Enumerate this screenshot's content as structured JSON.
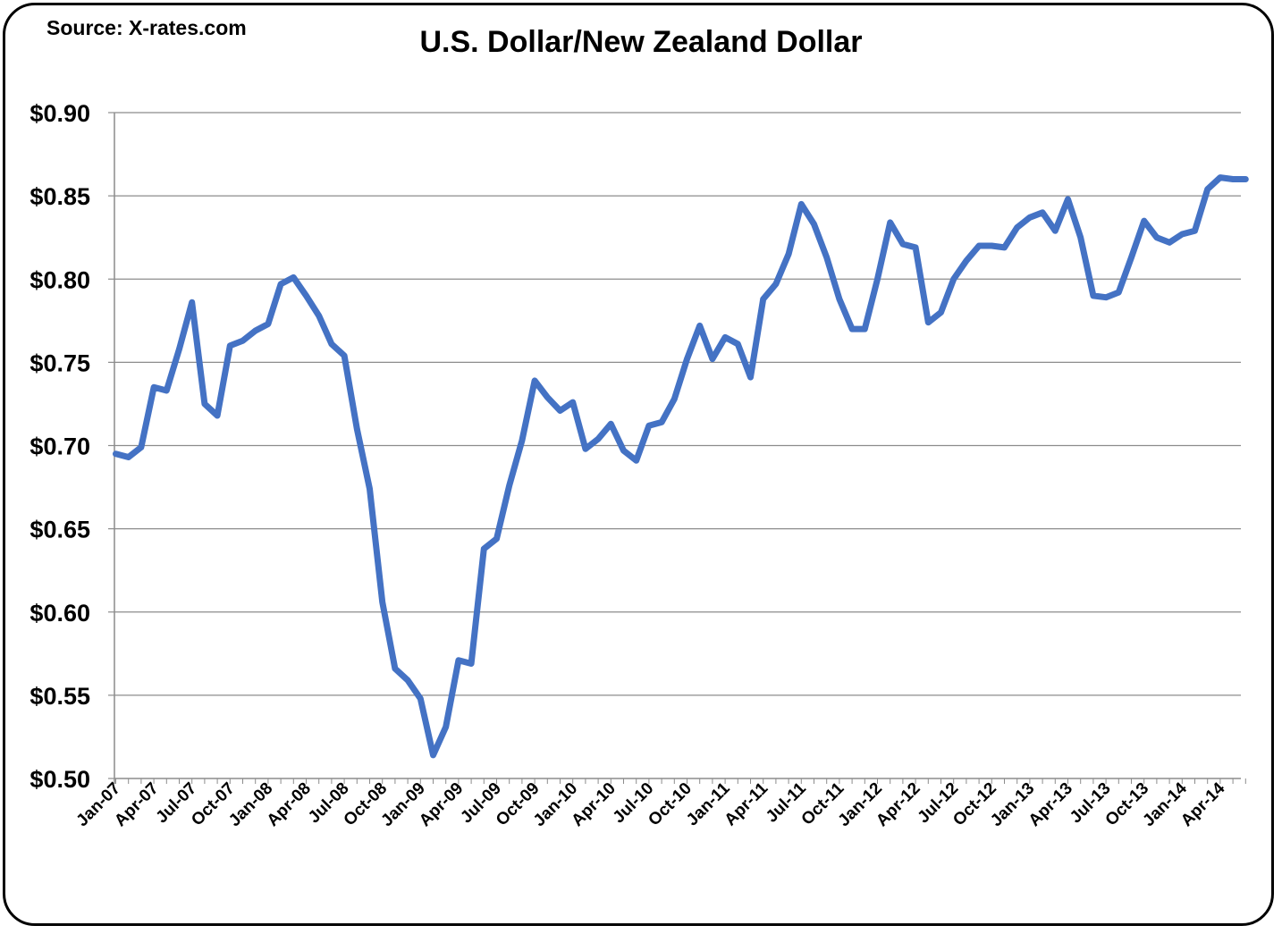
{
  "source": "Source: X-rates.com",
  "chart_data": {
    "type": "line",
    "title": "U.S. Dollar/New Zealand Dollar",
    "xlabel": "",
    "ylabel": "",
    "ylim": [
      0.5,
      0.9
    ],
    "yticks": [
      0.5,
      0.55,
      0.6,
      0.65,
      0.7,
      0.75,
      0.8,
      0.85,
      0.9
    ],
    "ytick_labels": [
      "$0.50",
      "$0.55",
      "$0.60",
      "$0.65",
      "$0.70",
      "$0.75",
      "$0.80",
      "$0.85",
      "$0.90"
    ],
    "xtick_labels": [
      "Jan-07",
      "Apr-07",
      "Jul-07",
      "Oct-07",
      "Jan-08",
      "Apr-08",
      "Jul-08",
      "Oct-08",
      "Jan-09",
      "Apr-09",
      "Jul-09",
      "Oct-09",
      "Jan-10",
      "Apr-10",
      "Jul-10",
      "Oct-10",
      "Jan-11",
      "Apr-11",
      "Jul-11",
      "Oct-11",
      "Jan-12",
      "Apr-12",
      "Jul-12",
      "Oct-12",
      "Jan-13",
      "Apr-13",
      "Jul-13",
      "Oct-13",
      "Jan-14",
      "Apr-14"
    ],
    "grid": true,
    "legend": "none",
    "line_color": "#4472C4",
    "categories": [
      "Jan-07",
      "Feb-07",
      "Mar-07",
      "Apr-07",
      "May-07",
      "Jun-07",
      "Jul-07",
      "Aug-07",
      "Sep-07",
      "Oct-07",
      "Nov-07",
      "Dec-07",
      "Jan-08",
      "Feb-08",
      "Mar-08",
      "Apr-08",
      "May-08",
      "Jun-08",
      "Jul-08",
      "Aug-08",
      "Sep-08",
      "Oct-08",
      "Nov-08",
      "Dec-08",
      "Jan-09",
      "Feb-09",
      "Mar-09",
      "Apr-09",
      "May-09",
      "Jun-09",
      "Jul-09",
      "Aug-09",
      "Sep-09",
      "Oct-09",
      "Nov-09",
      "Dec-09",
      "Jan-10",
      "Feb-10",
      "Mar-10",
      "Apr-10",
      "May-10",
      "Jun-10",
      "Jul-10",
      "Aug-10",
      "Sep-10",
      "Oct-10",
      "Nov-10",
      "Dec-10",
      "Jan-11",
      "Feb-11",
      "Mar-11",
      "Apr-11",
      "May-11",
      "Jun-11",
      "Jul-11",
      "Aug-11",
      "Sep-11",
      "Oct-11",
      "Nov-11",
      "Dec-11",
      "Jan-12",
      "Feb-12",
      "Mar-12",
      "Apr-12",
      "May-12",
      "Jun-12",
      "Jul-12",
      "Aug-12",
      "Sep-12",
      "Oct-12",
      "Nov-12",
      "Dec-12",
      "Jan-13",
      "Feb-13",
      "Mar-13",
      "Apr-13",
      "May-13",
      "Jun-13",
      "Jul-13",
      "Aug-13",
      "Sep-13",
      "Oct-13",
      "Nov-13",
      "Dec-13",
      "Jan-14",
      "Feb-14",
      "Mar-14",
      "Apr-14",
      "May-14",
      "Jun-14"
    ],
    "series": [
      {
        "values": [
          0.695,
          0.693,
          0.699,
          0.735,
          0.733,
          0.758,
          0.786,
          0.725,
          0.718,
          0.76,
          0.763,
          0.769,
          0.773,
          0.797,
          0.801,
          0.79,
          0.778,
          0.761,
          0.754,
          0.71,
          0.674,
          0.606,
          0.566,
          0.559,
          0.548,
          0.514,
          0.531,
          0.571,
          0.569,
          0.638,
          0.644,
          0.676,
          0.703,
          0.739,
          0.729,
          0.721,
          0.726,
          0.698,
          0.704,
          0.713,
          0.697,
          0.691,
          0.712,
          0.714,
          0.728,
          0.752,
          0.772,
          0.752,
          0.765,
          0.761,
          0.741,
          0.788,
          0.797,
          0.815,
          0.845,
          0.833,
          0.813,
          0.788,
          0.77,
          0.77,
          0.8,
          0.834,
          0.821,
          0.819,
          0.774,
          0.78,
          0.8,
          0.811,
          0.82,
          0.82,
          0.819,
          0.831,
          0.837,
          0.84,
          0.829,
          0.848,
          0.825,
          0.79,
          0.789,
          0.792,
          0.813,
          0.835,
          0.825,
          0.822,
          0.827,
          0.829,
          0.854,
          0.861,
          0.86,
          0.86
        ]
      }
    ]
  }
}
